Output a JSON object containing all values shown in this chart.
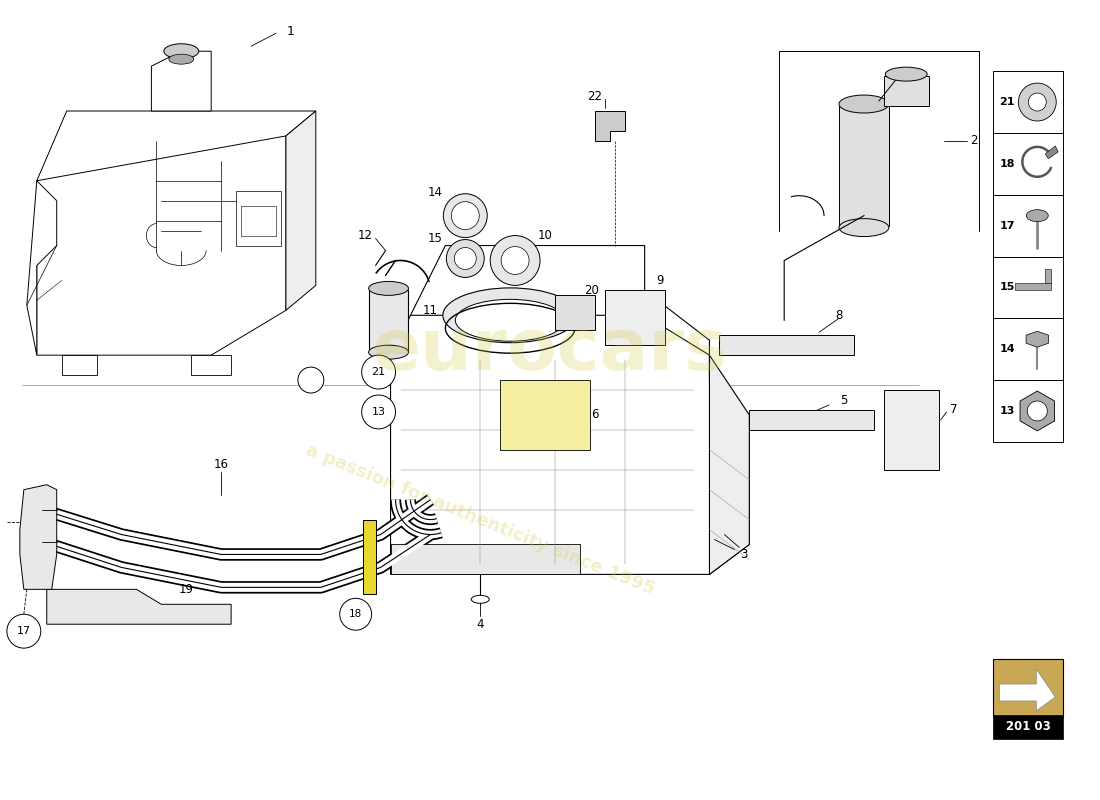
{
  "bg_color": "#ffffff",
  "line_color": "#000000",
  "page_code": "201 03",
  "sidebar_labels": [
    21,
    18,
    17,
    15,
    14,
    13
  ],
  "watermark1": "eurocars",
  "watermark2": "a passion for authenticity since 1995",
  "wm_color": "#d4c840",
  "figsize": [
    11.0,
    8.0
  ],
  "dpi": 100
}
